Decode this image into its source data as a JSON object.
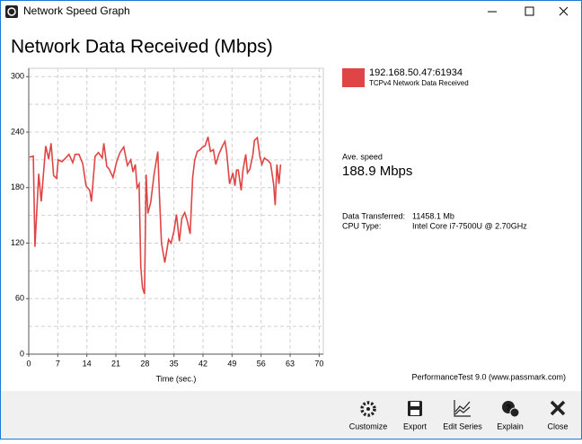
{
  "window": {
    "title": "Network Speed Graph"
  },
  "chart_data": {
    "type": "line",
    "title": "Network Data Received (Mbps)",
    "xlabel": "Time (sec.)",
    "x": [
      0.2,
      1.1,
      1.5,
      2.4,
      3.0,
      4.1,
      4.8,
      5.4,
      6.0,
      6.7,
      7.1,
      8.0,
      8.9,
      9.7,
      10.6,
      11.2,
      12.1,
      13.0,
      13.8,
      14.7,
      15.1,
      16.0,
      16.8,
      17.7,
      18.1,
      18.8,
      19.4,
      20.3,
      21.2,
      22.0,
      22.9,
      23.8,
      24.6,
      25.1,
      25.7,
      26.1,
      26.6,
      27.0,
      27.4,
      27.9,
      28.3,
      28.7,
      29.4,
      30.2,
      31.1,
      31.5,
      32.0,
      32.8,
      33.7,
      34.3,
      35.0,
      35.6,
      36.3,
      36.9,
      37.6,
      38.2,
      38.9,
      39.5,
      40.0,
      40.6,
      41.3,
      41.9,
      42.5,
      43.2,
      43.8,
      44.5,
      45.1,
      45.8,
      46.7,
      47.3,
      47.7,
      48.4,
      48.8,
      49.2,
      49.7,
      50.1,
      50.5,
      51.2,
      51.6,
      52.3,
      52.7,
      53.3,
      54.0,
      54.4,
      55.1,
      55.7,
      56.2,
      56.8,
      57.7,
      58.3,
      59.0,
      59.4,
      59.8,
      60.3,
      60.7
    ],
    "series": [
      {
        "name": "192.168.50.47:61934",
        "description": "TCPv4 Network Data Received",
        "color": "#e04545",
        "values": [
          213,
          214,
          116,
          195,
          165,
          225,
          211,
          228,
          193,
          190,
          210,
          208,
          212,
          216,
          207,
          216,
          216,
          206,
          182,
          177,
          165,
          214,
          218,
          212,
          228,
          203,
          200,
          191,
          208,
          218,
          224,
          204,
          210,
          197,
          205,
          180,
          184,
          95,
          72,
          65,
          194,
          152,
          164,
          194,
          219,
          172,
          120,
          99,
          124,
          120,
          133,
          151,
          122,
          147,
          153,
          144,
          130,
          191,
          210,
          219,
          221,
          224,
          225,
          235,
          219,
          221,
          205,
          216,
          225,
          230,
          218,
          184,
          190,
          196,
          182,
          199,
          199,
          177,
          198,
          216,
          196,
          200,
          215,
          231,
          234,
          214,
          205,
          212,
          209,
          206,
          184,
          161,
          205,
          184,
          205
        ]
      }
    ],
    "xlim": [
      0,
      71
    ],
    "ylim": [
      0,
      309
    ],
    "xticks": [
      0,
      7,
      14,
      21,
      28,
      35,
      42,
      49,
      56,
      63,
      70
    ],
    "yticks": [
      0,
      60,
      120,
      180,
      240,
      300
    ],
    "y_minor_ticks": [
      30,
      90,
      150,
      210,
      270
    ],
    "grid": true
  },
  "info": {
    "avg_label": "Ave. speed",
    "avg_value": "188.9 Mbps",
    "rows": [
      [
        "Data Transferred:",
        "11458.1 Mb"
      ],
      [
        "CPU Type:",
        "Intel Core i7-7500U @ 2.70GHz"
      ]
    ],
    "footer": "PerformanceTest 9.0 (www.passmark.com)"
  },
  "toolbar": [
    "Customize",
    "Export",
    "Edit Series",
    "Explain",
    "Close"
  ]
}
